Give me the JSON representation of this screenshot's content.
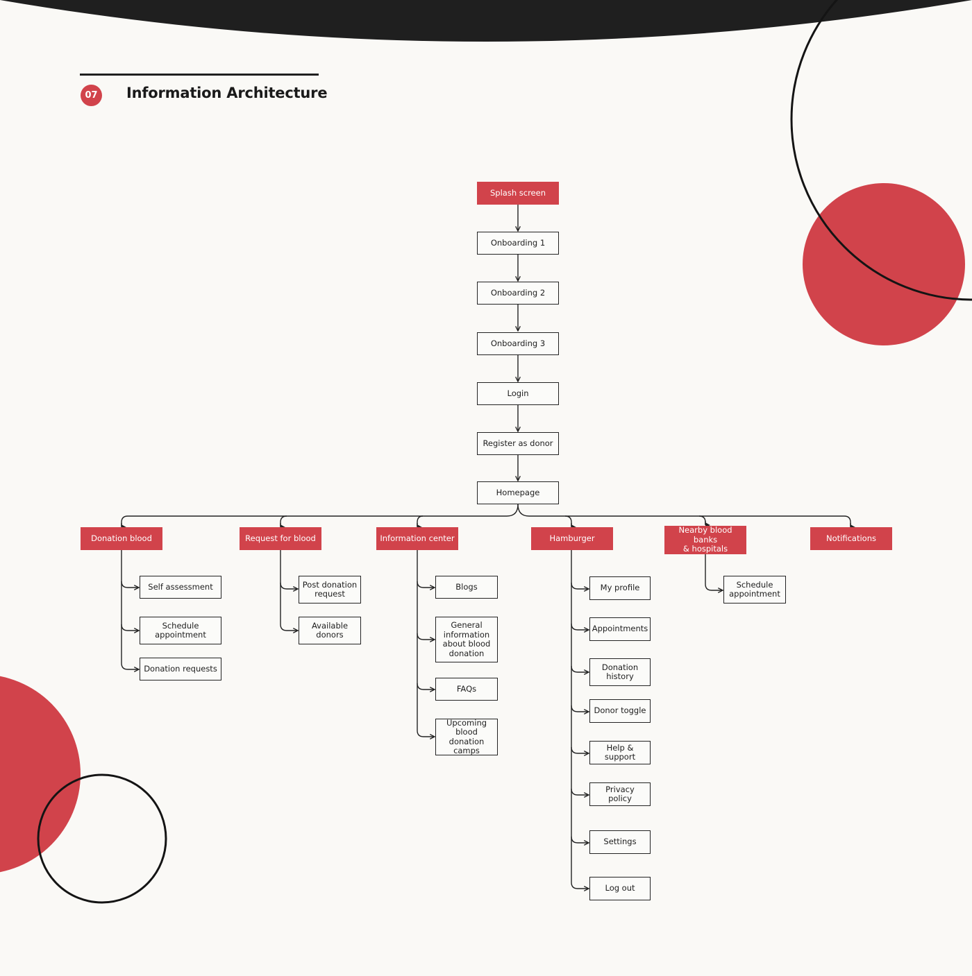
{
  "header": {
    "section_number": "07",
    "title": "Information Architecture"
  },
  "colors": {
    "accent": "#d1434b",
    "dark": "#1f1f1f",
    "background": "#faf9f6"
  },
  "flow": {
    "splash": "Splash screen",
    "onboarding1": "Onboarding 1",
    "onboarding2": "Onboarding 2",
    "onboarding3": "Onboarding 3",
    "login": "Login",
    "register": "Register as donor",
    "homepage": "Homepage"
  },
  "branches": {
    "donation": {
      "label": "Donation blood",
      "children": [
        "Self assessment",
        "Schedule\nappointment",
        "Donation requests"
      ]
    },
    "request": {
      "label": "Request for blood",
      "children": [
        "Post donation\nrequest",
        "Available\ndonors"
      ]
    },
    "info": {
      "label": "Information center",
      "children": [
        "Blogs",
        "General\ninformation\nabout blood\ndonation",
        "FAQs",
        "Upcoming\nblood donation\ncamps"
      ]
    },
    "hamburger": {
      "label": "Hamburger",
      "children": [
        "My profile",
        "Appointments",
        "Donation\nhistory",
        "Donor toggle",
        "Help & support",
        "Privacy policy",
        "Settings",
        "Log out"
      ]
    },
    "nearby": {
      "label": "Nearby blood banks\n& hospitals",
      "children": [
        "Schedule\nappointment"
      ]
    },
    "notifications": {
      "label": "Notifications",
      "children": []
    }
  }
}
